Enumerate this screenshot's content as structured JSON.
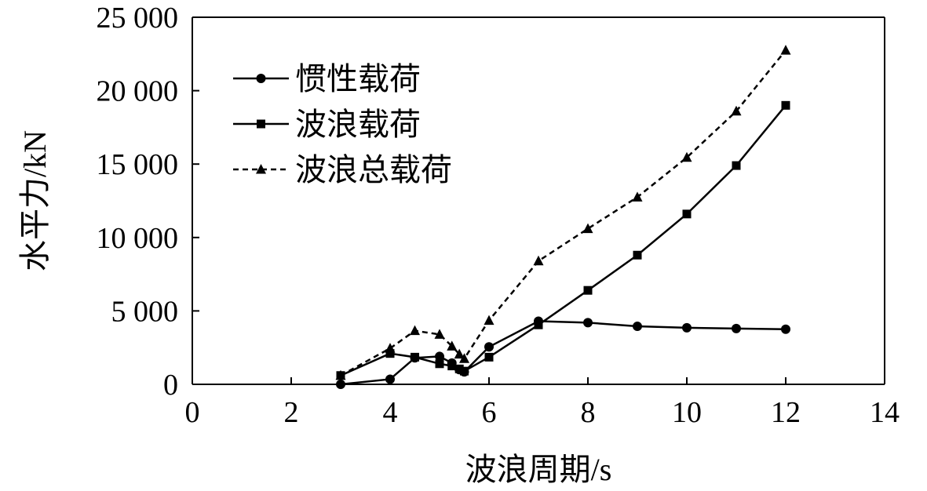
{
  "chart_data": {
    "type": "line",
    "xlabel": "波浪周期/s",
    "ylabel": "水平力/kN",
    "xlim": [
      0,
      14
    ],
    "ylim": [
      0,
      25000
    ],
    "xticks": [
      0,
      2,
      4,
      6,
      8,
      10,
      12,
      14
    ],
    "yticks": [
      0,
      5000,
      10000,
      15000,
      20000,
      25000
    ],
    "xtick_labels": [
      "0",
      "2",
      "4",
      "6",
      "8",
      "10",
      "12",
      "14"
    ],
    "ytick_labels": [
      "0",
      "5 000",
      "10 000",
      "15 000",
      "20 000",
      "25 000"
    ],
    "grid": false,
    "legend_position": "top-left",
    "series": [
      {
        "name": "惯性载荷",
        "marker": "circle",
        "line_style": "solid",
        "color": "#000000",
        "x": [
          3,
          4,
          4.5,
          5,
          5.25,
          5.4,
          5.5,
          6,
          7,
          8,
          9,
          10,
          11,
          12
        ],
        "y": [
          0,
          350,
          1800,
          1900,
          1450,
          1000,
          850,
          2550,
          4300,
          4200,
          3950,
          3850,
          3800,
          3750
        ]
      },
      {
        "name": "波浪载荷",
        "marker": "square",
        "line_style": "solid",
        "color": "#000000",
        "x": [
          3,
          4,
          4.5,
          5,
          5.25,
          5.4,
          5.5,
          6,
          7,
          8,
          9,
          10,
          11,
          12
        ],
        "y": [
          600,
          2100,
          1850,
          1400,
          1250,
          1050,
          900,
          1850,
          4050,
          6400,
          8800,
          11600,
          14900,
          19000
        ]
      },
      {
        "name": "波浪总载荷",
        "marker": "triangle",
        "line_style": "dashed",
        "color": "#000000",
        "x": [
          3,
          4,
          4.5,
          5,
          5.25,
          5.4,
          5.5,
          6,
          7,
          8,
          9,
          10,
          11,
          12
        ],
        "y": [
          600,
          2450,
          3650,
          3400,
          2600,
          2050,
          1750,
          4350,
          8400,
          10600,
          12750,
          15450,
          18600,
          22750
        ]
      }
    ]
  }
}
